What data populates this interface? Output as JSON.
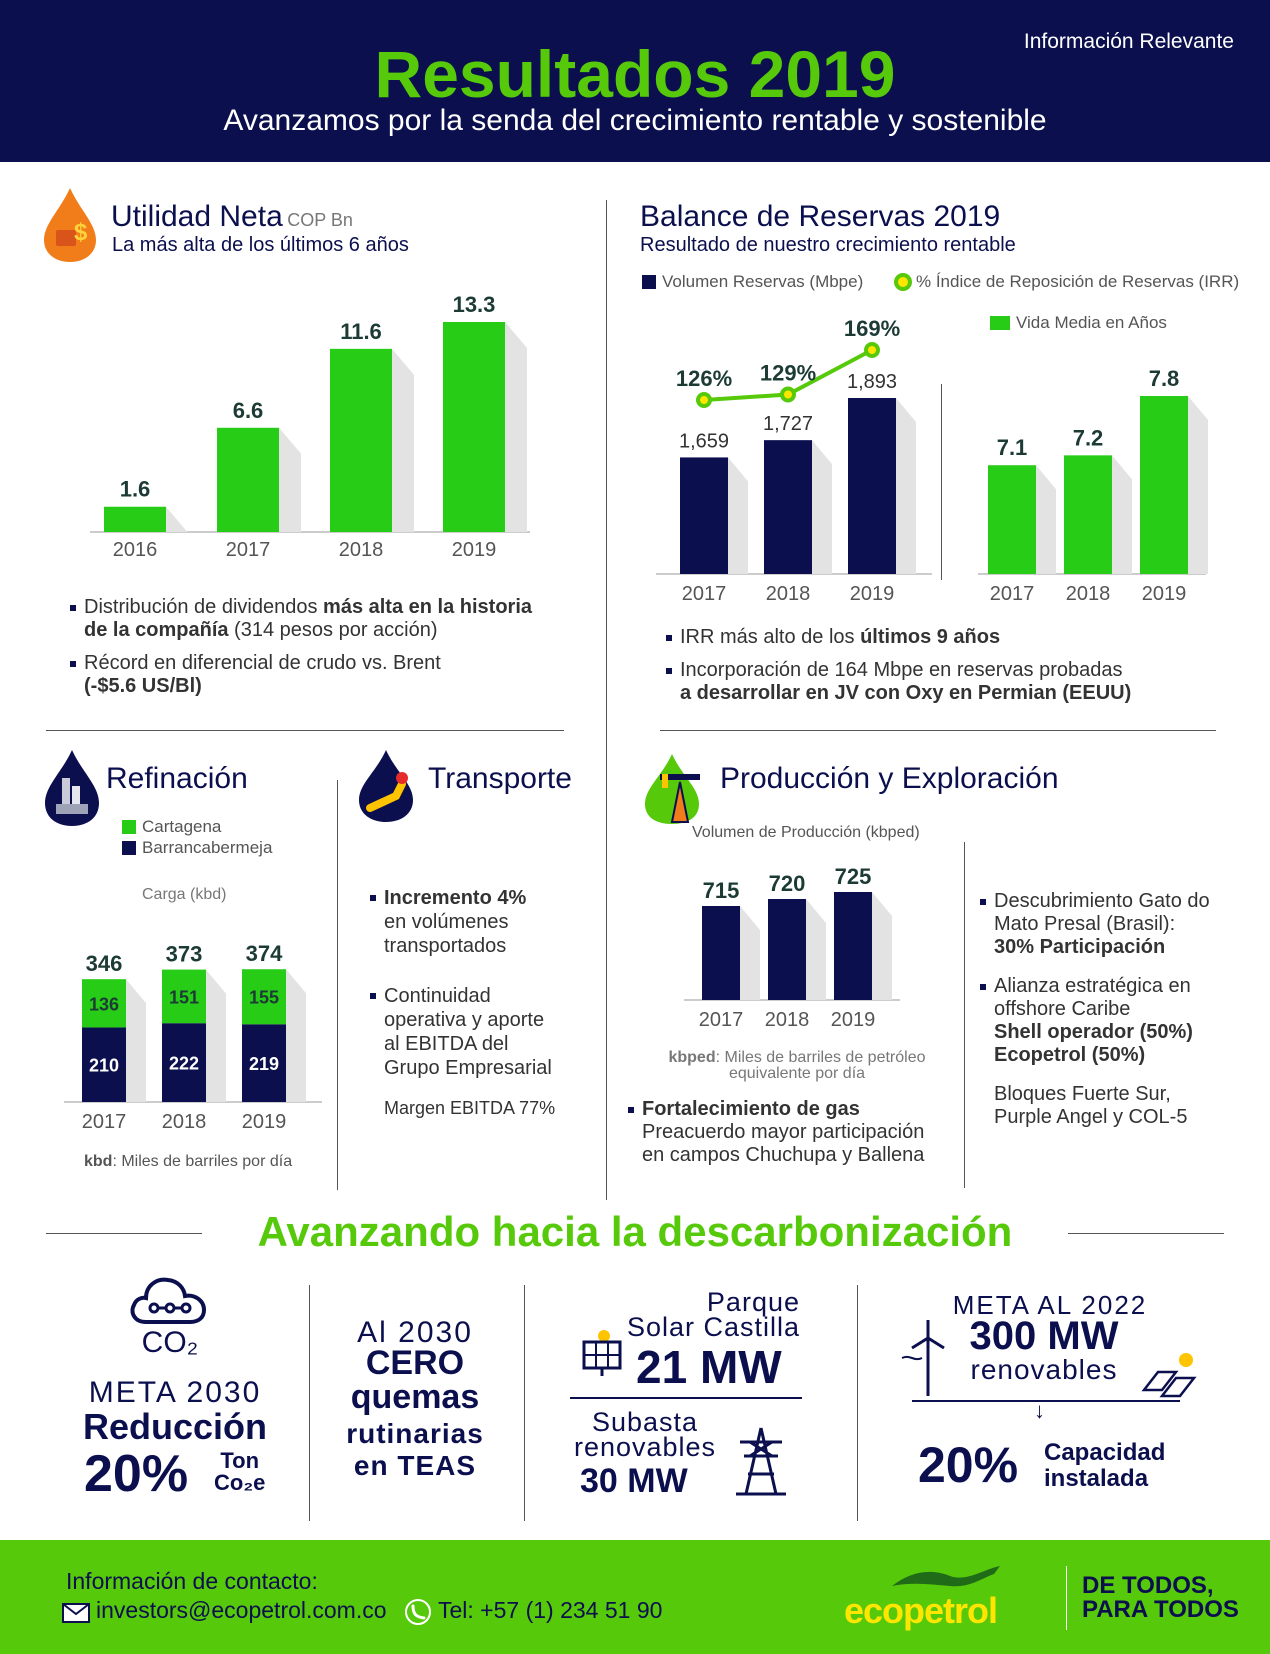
{
  "header": {
    "info_label": "Información Relevante",
    "title": "Resultados 2019",
    "subtitle": "Avanzamos por la senda del crecimiento rentable y sostenible"
  },
  "utilidad": {
    "title": "Utilidad Neta",
    "unit": "COP Bn",
    "subtitle": "La más alta de los últimos 6 años",
    "bullets": [
      {
        "pre": "Distribución de dividendos ",
        "bold": "más alta en la historia",
        "line2_bold": "de la compañía",
        "line2_rest": " (314 pesos por acción)"
      },
      {
        "pre": "Récord en diferencial de crudo vs. Brent",
        "line2_bold": "(-$5.6 US/Bl)"
      }
    ]
  },
  "reservas": {
    "title": "Balance de Reservas 2019",
    "subtitle": "Resultado de nuestro crecimiento rentable",
    "legend_volume": "Volumen Reservas (Mbpe)",
    "legend_irr": "% Índice de Reposición de Reservas (IRR)",
    "legend_vida": "Vida Media en Años",
    "bullets": [
      {
        "pre": "IRR más alto de los ",
        "bold": "últimos 9 años"
      },
      {
        "pre": "Incorporación de 164 Mbpe en reservas probadas",
        "line2_bold": "a desarrollar en JV con Oxy en Permian (EEUU)"
      }
    ]
  },
  "refinacion": {
    "title": "Refinación",
    "legend_cartagena": "Cartagena",
    "legend_barranca": "Barrancabermeja",
    "carga_label": "Carga (kbd)",
    "note_bold": "kbd",
    "note_rest": ": Miles de barriles por día"
  },
  "transporte": {
    "title": "Transporte",
    "b1_bold": "Incremento 4%",
    "b1_l2": "en volúmenes",
    "b1_l3": "transportados",
    "b2_l1": "Continuidad",
    "b2_l2": "operativa y aporte",
    "b2_l3": "al EBITDA del",
    "b2_l4": "Grupo Empresarial",
    "margen": "Margen EBITDA 77%"
  },
  "produccion": {
    "title": "Producción y Exploración",
    "chart_label": "Volumen de Producción (kbped)",
    "note_bold": "kbped",
    "note_rest": ": Miles de barriles de petróleo",
    "note_l2": "equivalente por día",
    "gas_bold": "Fortalecimiento de gas",
    "gas_l2": "Preacuerdo mayor participación",
    "gas_l3": "en campos Chuchupa y Ballena",
    "r1_l1": "Descubrimiento Gato do",
    "r1_l2": "Mato Presal (Brasil):",
    "r1_bold": "30% Participación",
    "r2_l1": "Alianza estratégica en",
    "r2_l2": "offshore Caribe",
    "r2_bold1": "Shell operador (50%)",
    "r2_bold2": "Ecopetrol (50%)",
    "r3_l1": "Bloques Fuerte Sur,",
    "r3_l2": "Purple Angel y COL-5"
  },
  "descarbonizacion": {
    "title": "Avanzando hacia la descarbonización",
    "co2": "CO₂",
    "meta2030": "META 2030",
    "reduccion": "Reducción",
    "pct20": "20%",
    "ton": "Ton",
    "co2e": "Co₂e",
    "al2030": "Al 2030",
    "cero": "CERO",
    "quemas": "quemas",
    "rutinarias": "rutinarias",
    "en_teas": "en TEAS",
    "parque": "Parque",
    "solar": "Solar Castilla",
    "mw21": "21 MW",
    "subasta": "Subasta",
    "renovables_s": "renovables",
    "mw30": "30 MW",
    "meta2022": "META AL 2022",
    "mw300": "300 MW",
    "renovables": "renovables",
    "pct20b": "20%",
    "capacidad": "Capacidad",
    "instalada": "instalada"
  },
  "footer": {
    "contact_title": "Información de contacto:",
    "email": "investors@ecopetrol.com.co",
    "tel": "Tel: +57 (1) 234 51 90",
    "brand": "ecopetrol",
    "slogan_l1": "DE TODOS,",
    "slogan_l2": "PARA TODOS"
  },
  "icons": [
    "oil-drop-dollar-icon",
    "refinery-drop-icon",
    "pipeline-drop-icon",
    "oil-rig-drop-icon",
    "cloud-co2-icon",
    "solar-panel-icon",
    "wind-turbine-icon",
    "electric-tower-icon",
    "envelope-icon",
    "phone-icon",
    "iguana-logo-icon"
  ],
  "colors": {
    "navy": "#0b0f4e",
    "green": "#56c90b",
    "orange": "#f07d1a"
  },
  "chart_data": [
    {
      "type": "bar",
      "id": "utilidad",
      "categories": [
        "2016",
        "2017",
        "2018",
        "2019"
      ],
      "values": [
        1.6,
        6.6,
        11.6,
        13.3
      ],
      "labels": [
        "1.6",
        "6.6",
        "11.6",
        "13.3"
      ],
      "title": "Utilidad Neta",
      "ylim": [
        0,
        13.3
      ]
    },
    {
      "type": "bar",
      "id": "reservas-volumen",
      "categories": [
        "2017",
        "2018",
        "2019"
      ],
      "series": [
        {
          "name": "Volumen Reservas (Mbpe)",
          "values": [
            1659,
            1727,
            1893
          ],
          "labels": [
            "1,659",
            "1,727",
            "1,893"
          ]
        },
        {
          "name": "% Índice de Reposición de Reservas (IRR)",
          "type": "line",
          "values": [
            126,
            129,
            169
          ],
          "labels": [
            "126%",
            "129%",
            "169%"
          ]
        }
      ]
    },
    {
      "type": "bar",
      "id": "vida-media",
      "categories": [
        "2017",
        "2018",
        "2019"
      ],
      "values": [
        7.1,
        7.2,
        7.8
      ],
      "labels": [
        "7.1",
        "7.2",
        "7.8"
      ],
      "series_name": "Vida Media en Años"
    },
    {
      "type": "bar",
      "id": "refinacion",
      "stacked": true,
      "categories": [
        "2017",
        "2018",
        "2019"
      ],
      "series": [
        {
          "name": "Barrancabermeja",
          "values": [
            210,
            222,
            219
          ]
        },
        {
          "name": "Cartagena",
          "values": [
            136,
            151,
            155
          ]
        }
      ],
      "totals": [
        346,
        373,
        374
      ],
      "ylabel": "Carga (kbd)"
    },
    {
      "type": "bar",
      "id": "produccion",
      "categories": [
        "2017",
        "2018",
        "2019"
      ],
      "values": [
        715,
        720,
        725
      ],
      "ylabel": "Volumen de Producción (kbped)"
    }
  ]
}
